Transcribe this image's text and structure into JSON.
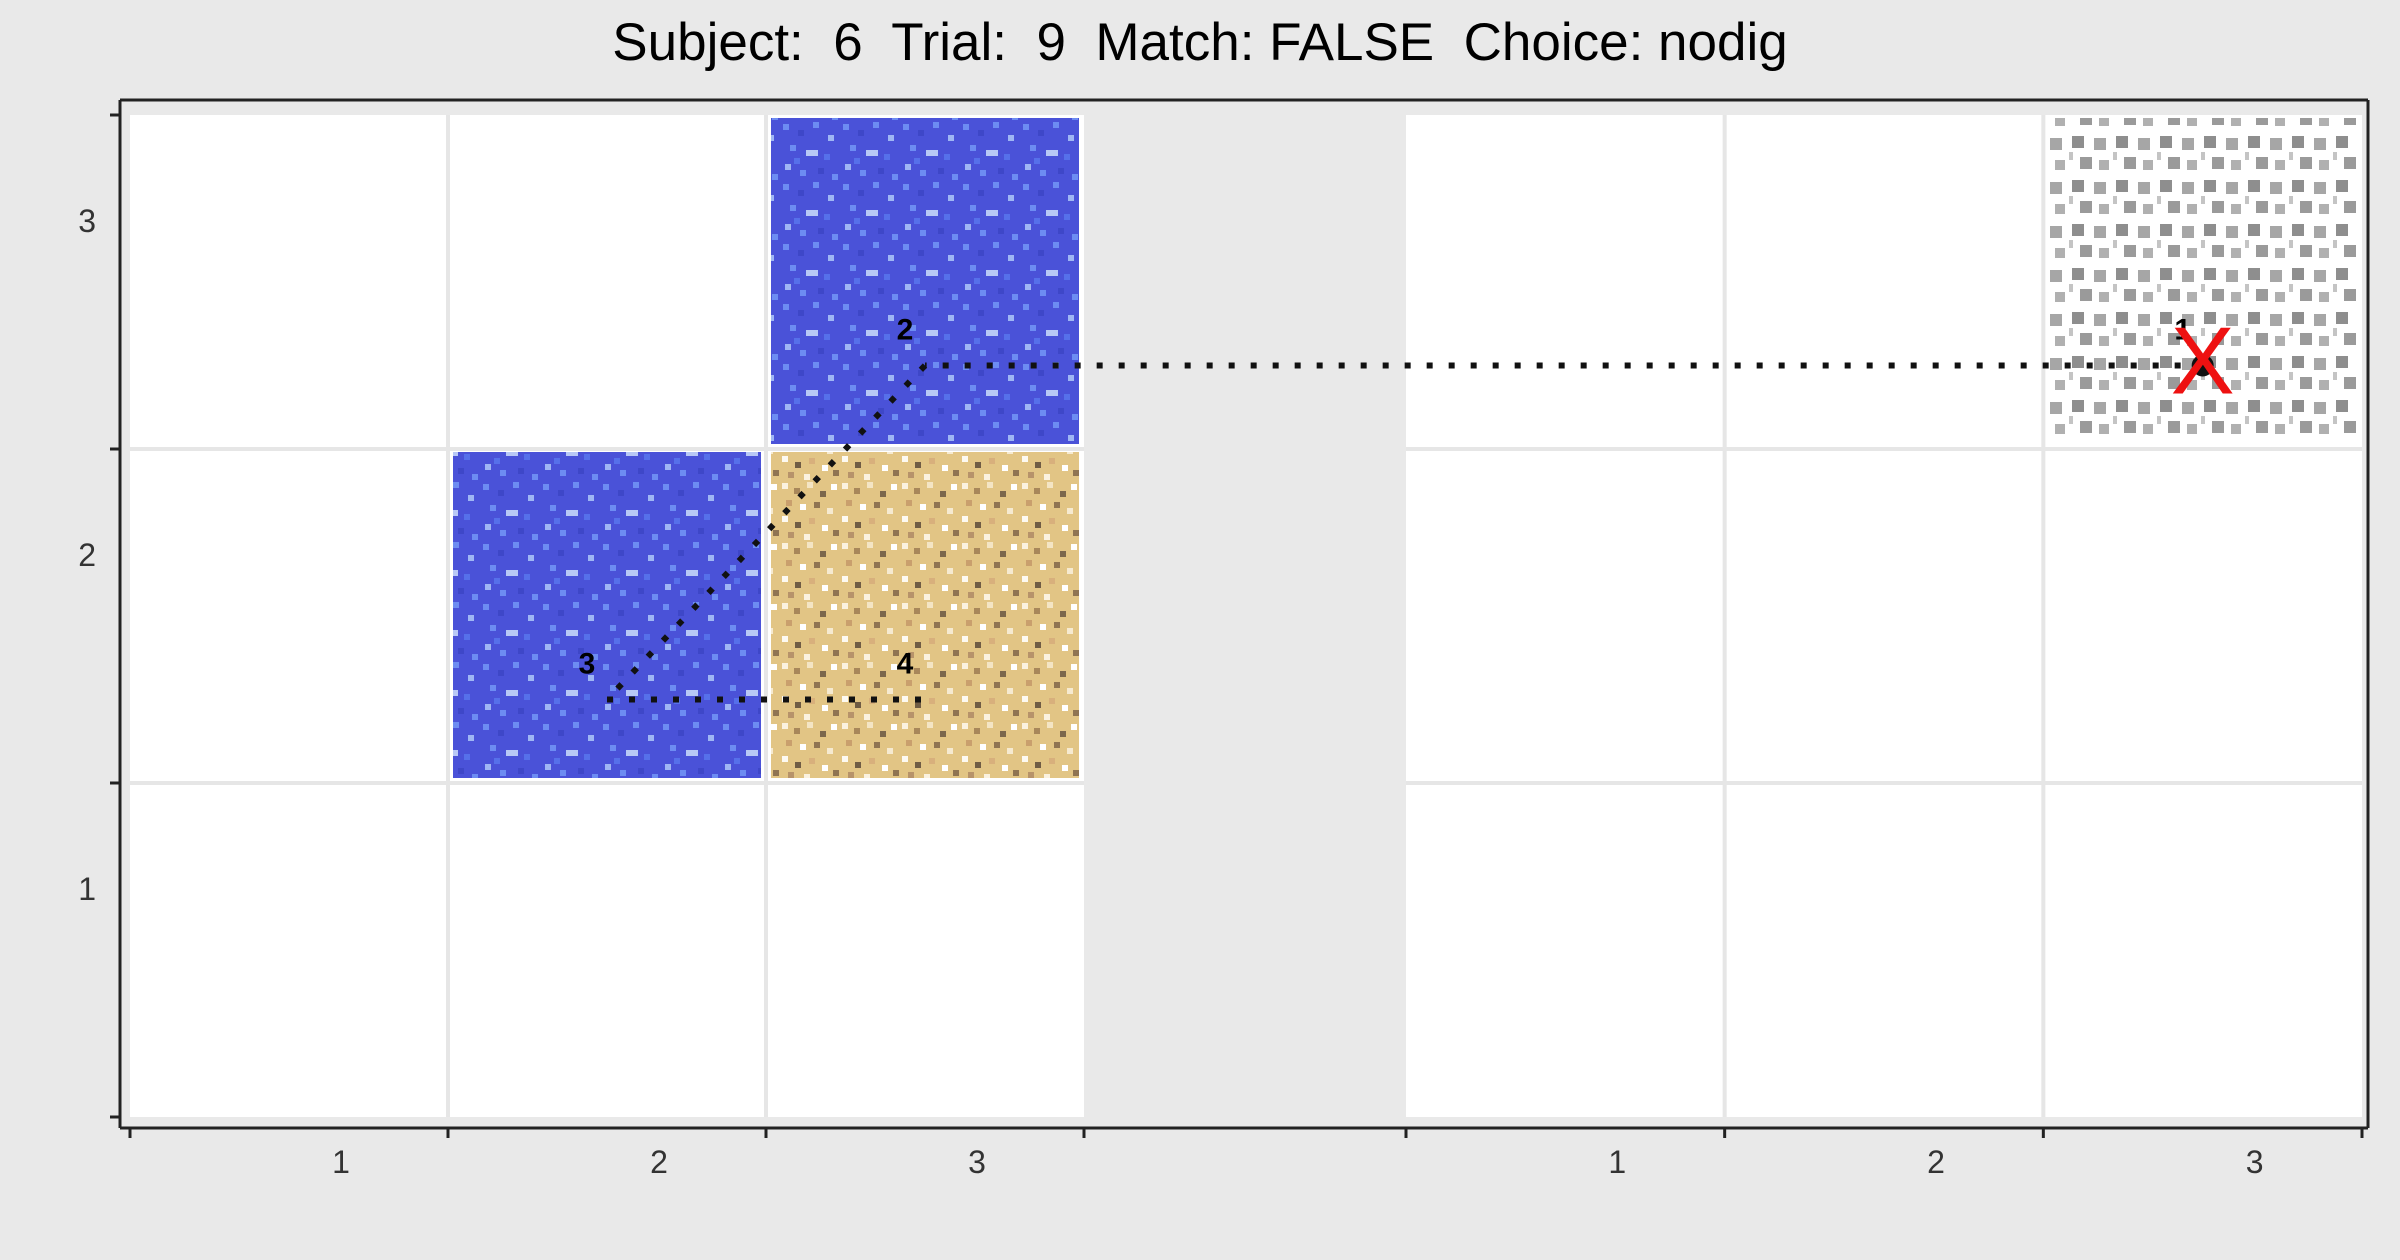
{
  "header": {
    "title": "Subject:  6  Trial:  9  Match: FALSE  Choice: nodig"
  },
  "chart_data": {
    "type": "heatmap",
    "title": "Subject:  6  Trial:  9  Match: FALSE  Choice: nodig",
    "xlabel": "",
    "ylabel": "",
    "panels": [
      {
        "name": "left",
        "x_ticks": [
          "1",
          "2",
          "3"
        ],
        "y_ticks": [
          "1",
          "2",
          "3"
        ],
        "xlim": [
          0.5,
          3.5
        ],
        "ylim": [
          0.5,
          3.5
        ],
        "tiles": [
          {
            "x": 3,
            "y": 3,
            "texture": "water"
          },
          {
            "x": 2,
            "y": 2,
            "texture": "water"
          },
          {
            "x": 3,
            "y": 2,
            "texture": "sand"
          }
        ]
      },
      {
        "name": "right",
        "x_ticks": [
          "1",
          "2",
          "3"
        ],
        "y_ticks": [
          "1",
          "2",
          "3"
        ],
        "xlim": [
          0.5,
          3.5
        ],
        "ylim": [
          0.5,
          3.5
        ],
        "tiles": [
          {
            "x": 3,
            "y": 3,
            "texture": "stone"
          }
        ]
      }
    ],
    "path": [
      {
        "step": "1",
        "panel": "right",
        "x": 3.0,
        "y": 2.75
      },
      {
        "step": "2",
        "panel": "left",
        "x": 3.0,
        "y": 2.75
      },
      {
        "step": "3",
        "panel": "left",
        "x": 2.0,
        "y": 1.75
      },
      {
        "step": "4",
        "panel": "left",
        "x": 3.0,
        "y": 1.75
      }
    ],
    "marker": {
      "symbol": "X",
      "panel": "right",
      "x": 3.0,
      "y": 2.75,
      "color": "#ee1111"
    },
    "grid": true,
    "colors": {
      "water": "#4a52d8",
      "sand": "#e2c585",
      "stone": "#9a9a9a",
      "background": "#e9e9e9",
      "panel": "#ffffff",
      "grid": "#e6e6e6",
      "path": "#111111"
    }
  }
}
